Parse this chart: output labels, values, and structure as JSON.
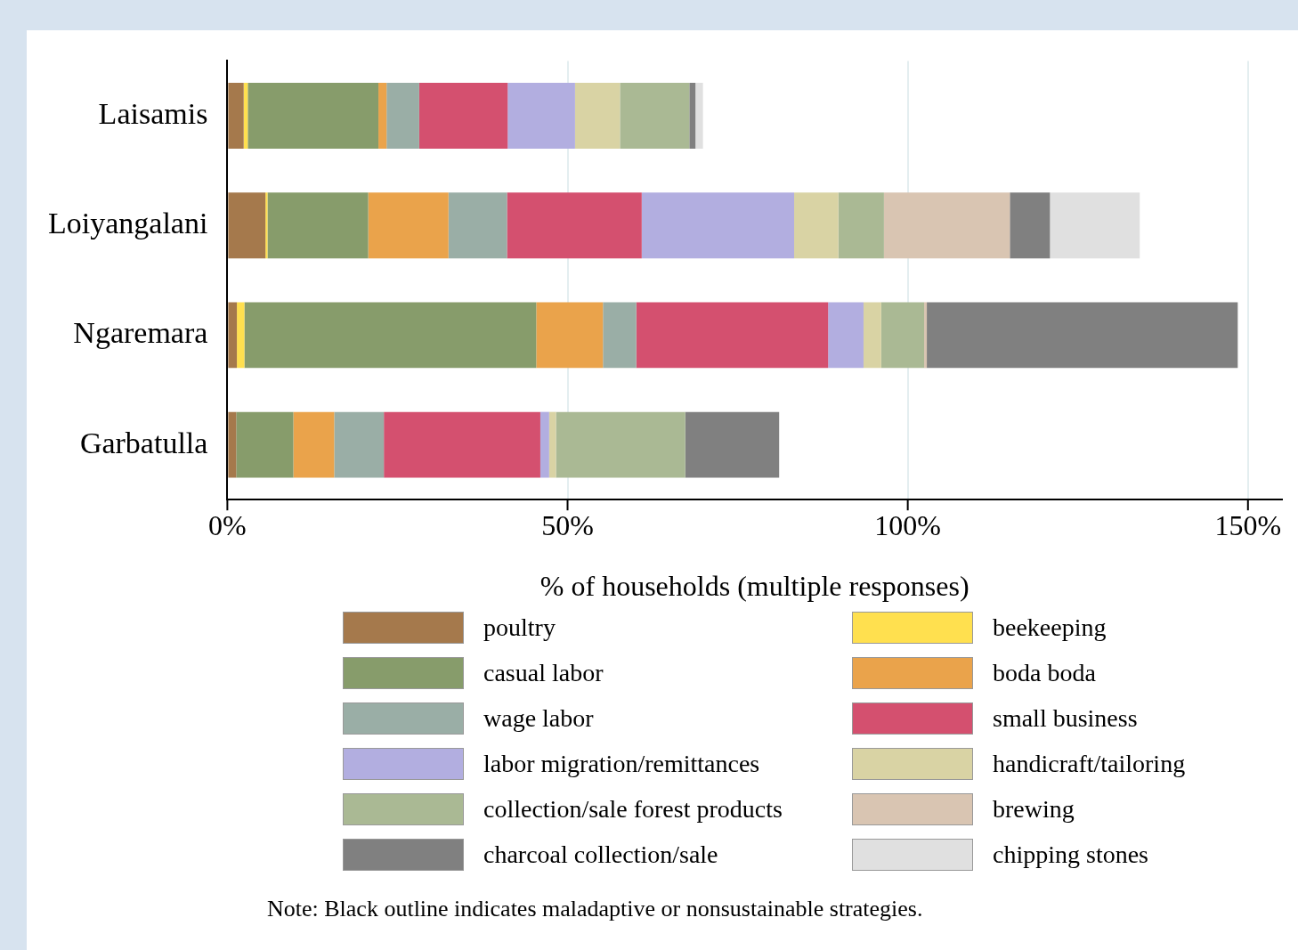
{
  "chart_data": {
    "type": "bar",
    "orientation": "horizontal",
    "stacked": true,
    "xlabel": "% of households (multiple responses)",
    "categories": [
      "Laisamis",
      "Loiyangalani",
      "Ngaremara",
      "Garbatulla"
    ],
    "series": [
      {
        "name": "poultry",
        "color": "#a5794c",
        "values": [
          2.4,
          5.6,
          1.4,
          1.3
        ]
      },
      {
        "name": "beekeeping",
        "color": "#ffe04f",
        "values": [
          0.6,
          0.3,
          1.1,
          0
        ]
      },
      {
        "name": "casual labor",
        "color": "#879c6b",
        "values": [
          19.2,
          14.8,
          42.9,
          8.4
        ]
      },
      {
        "name": "boda boda",
        "color": "#eaa34b",
        "values": [
          1.2,
          11.8,
          9.8,
          6.0
        ]
      },
      {
        "name": "wage labor",
        "color": "#9aaea6",
        "values": [
          4.8,
          8.6,
          4.9,
          7.3
        ]
      },
      {
        "name": "small business",
        "color": "#d4506f",
        "values": [
          13.0,
          19.8,
          28.2,
          23.0
        ]
      },
      {
        "name": "labor migration/remittances",
        "color": "#b2aee0",
        "values": [
          9.9,
          22.4,
          5.2,
          1.3
        ]
      },
      {
        "name": "handicraft/tailoring",
        "color": "#d9d3a4",
        "values": [
          6.6,
          6.5,
          2.6,
          1.0
        ]
      },
      {
        "name": "collection/sale forest products",
        "color": "#aab994",
        "values": [
          10.2,
          6.7,
          6.3,
          19.0
        ]
      },
      {
        "name": "brewing",
        "color": "#d9c5b2",
        "values": [
          0,
          18.5,
          0.4,
          0
        ]
      },
      {
        "name": "charcoal collection/sale",
        "color": "#808080",
        "values": [
          0.9,
          5.9,
          45.7,
          13.8
        ]
      },
      {
        "name": "chipping stones",
        "color": "#e0e0e0",
        "values": [
          1.1,
          13.2,
          0,
          0
        ]
      }
    ],
    "xlim": [
      0,
      155
    ],
    "xticks": [
      {
        "value": 0,
        "label": "0%"
      },
      {
        "value": 50,
        "label": "50%"
      },
      {
        "value": 100,
        "label": "100%"
      },
      {
        "value": 150,
        "label": "150%"
      }
    ],
    "grid": "x",
    "legend": "bottom",
    "annotations": [
      "Note: Black outline indicates maladaptive or nonsustainable strategies."
    ]
  }
}
